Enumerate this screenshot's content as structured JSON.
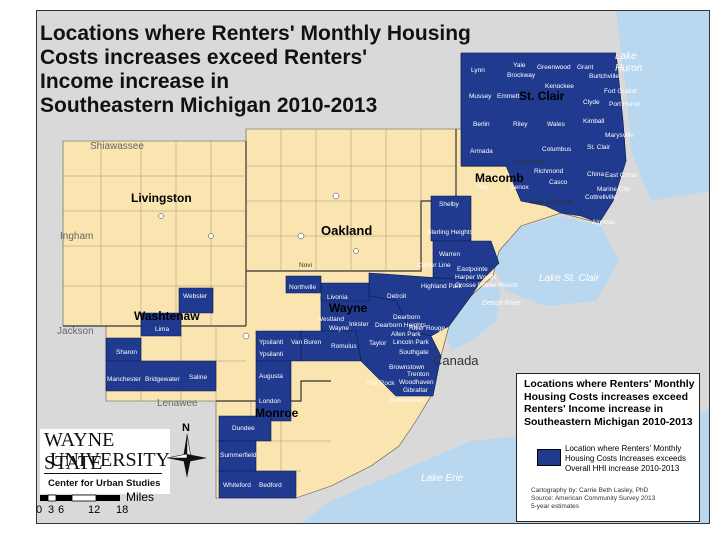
{
  "title": {
    "line1": "Locations where Renters' Monthly Housing",
    "line2": "Costs increases exceed Renters'",
    "line3": "Income increase in",
    "line4": "Southeastern Michigan 2010-2013"
  },
  "colors": {
    "highlight_tracts": "#1f3a8f",
    "region": "#fae4b0",
    "outside": "#d9d9d9",
    "water": "#b9d7ee"
  },
  "counties": {
    "livingston": "Livingston",
    "oakland": "Oakland",
    "macomb": "Macomb",
    "stclair": "St. Clair",
    "washtenaw": "Washtenaw",
    "wayne": "Wayne",
    "monroe": "Monroe"
  },
  "outer_counties": {
    "shiawassee": "Shiawassee",
    "ingham": "Ingham",
    "jackson": "Jackson",
    "lenawee": "Lenawee"
  },
  "water_labels": {
    "lake_huron": "Lake Huron",
    "lake_stclair": "Lake St. Clair",
    "detroit_river": "Detroit River",
    "lake_erie": "Lake Erie"
  },
  "canada": "Canada",
  "places": {
    "lynn": "Lynn",
    "yale": "Yale",
    "brockway": "Brockway",
    "greenwood": "Greenwood",
    "grant": "Grant",
    "burtchville": "Burtchville",
    "kenockee": "Kenockee",
    "fort_gratiot": "Fort Gratiot",
    "mussey": "Mussey",
    "emmett": "Emmett",
    "clyde": "Clyde",
    "port_huron": "Port Huron",
    "berlin": "Berlin",
    "riley": "Riley",
    "wales": "Wales",
    "kimball": "Kimball",
    "marysville": "Marysville",
    "armada": "Armada",
    "columbus": "Columbus",
    "st_clair": "St. Clair",
    "richmond": "Richmond",
    "casco": "Casco",
    "china": "China",
    "east_china": "East China",
    "ray": "Ray",
    "lenox": "Lenox",
    "marine_city": "Marine City",
    "cottrellville": "Cottrellville",
    "algonac": "Algonac",
    "new_baltimore": "New Baltimore",
    "shelby": "Shelby",
    "sterling_heights": "Sterling Heights",
    "warren": "Warren",
    "center_line": "Center Line",
    "eastpointe": "Eastpointe",
    "harper_woods": "Harper Woods",
    "grosse_pointe_woods": "Grosse Pointe Woods",
    "highland_park": "Highland Park",
    "detroit": "Detroit",
    "novi": "Novi",
    "northville": "Northville",
    "livonia": "Livonia",
    "westland": "Westland",
    "wayne_city": "Wayne",
    "inkster": "Inkster",
    "dearborn": "Dearborn",
    "dearborn_heights": "Dearborn Heights",
    "allen_park": "Allen Park",
    "river_rouge": "River Rouge",
    "lincoln_park": "Lincoln Park",
    "taylor": "Taylor",
    "southgate": "Southgate",
    "brownstown": "Brownstown",
    "trenton": "Trenton",
    "woodhaven": "Woodhaven",
    "flat_rock": "Flat Rock",
    "gibraltar": "Gibraltar",
    "romulus": "Romulus",
    "van_buren": "Van Buren",
    "ypsilanti": "Ypsilanti",
    "ypsilanti_twp": "Ypsilanti",
    "webster": "Webster",
    "lima": "Lima",
    "sharon": "Sharon",
    "manchester": "Manchester",
    "bridgewater": "Bridgewater",
    "saline": "Saline",
    "augusta": "Augusta",
    "london": "London",
    "dundee": "Dundee",
    "summerfield": "Summerfield",
    "whiteford": "Whiteford",
    "bedford": "Bedford"
  },
  "legend": {
    "title": "Locations where Renters' Monthly Housing Costs increases exceed Renters' Income increase in Southeastern Michigan 2010-2013",
    "item": "Location where Renters' Monthly Housing Costs Increases exceeds Overall HHI increase 2010-2013",
    "credit1": "Cartography by: Carrie Beth Lasley, PhD",
    "credit2": "Source: American Community Survey 2013",
    "credit3": "5-year estimates"
  },
  "logo": {
    "line1": "WAYNE STATE",
    "line2": "UNIVERSITY",
    "line3": "Center for Urban Studies"
  },
  "north_label": "N",
  "scale": {
    "unit": "Miles",
    "ticks": [
      "0",
      "3",
      "6",
      "12",
      "18"
    ]
  }
}
